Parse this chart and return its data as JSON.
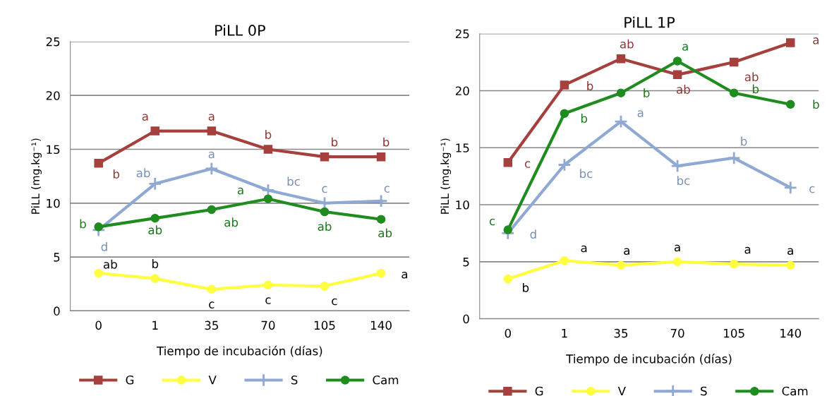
{
  "chart_data": [
    {
      "type": "line",
      "title": "PiLL 0P",
      "xlabel": "Tiempo de incubación (días)",
      "ylabel": "PiLL (mg.kg⁻¹)",
      "categories": [
        "0",
        "1",
        "35",
        "70",
        "105",
        "140"
      ],
      "ylim": [
        0,
        25
      ],
      "yticks": [
        0,
        5,
        10,
        15,
        20,
        25
      ],
      "grid": "y",
      "legend": "bottom",
      "series": [
        {
          "name": "G",
          "color": "#a5403d",
          "marker": "square",
          "values": [
            13.7,
            16.7,
            16.7,
            15.0,
            14.3,
            14.3
          ],
          "value_labels": [
            "b",
            "a",
            "a",
            "b",
            "b",
            "b"
          ]
        },
        {
          "name": "V",
          "color": "#ffff40",
          "marker": "circle",
          "values": [
            3.5,
            3.0,
            2.0,
            2.4,
            2.3,
            3.5
          ],
          "value_labels": [
            "ab",
            "b",
            "c",
            "c",
            "c",
            "a"
          ]
        },
        {
          "name": "S",
          "color": "#8fa8d4",
          "marker": "cross",
          "values": [
            7.5,
            11.8,
            13.2,
            11.2,
            10.0,
            10.2
          ],
          "value_labels": [
            "d",
            "ab",
            "a",
            "bc",
            "c",
            "c"
          ]
        },
        {
          "name": "Cam",
          "color": "#1e8c1e",
          "marker": "circle",
          "values": [
            7.8,
            8.6,
            9.4,
            10.4,
            9.2,
            8.5
          ],
          "value_labels": [
            "b",
            "ab",
            "ab",
            "a",
            "ab",
            "ab"
          ]
        }
      ]
    },
    {
      "type": "line",
      "title": "PiLL 1P",
      "xlabel": "Tiempo de incubación (días)",
      "ylabel": "PiLL (mg.kg⁻¹)",
      "categories": [
        "0",
        "1",
        "35",
        "70",
        "105",
        "140"
      ],
      "ylim": [
        0,
        25
      ],
      "yticks": [
        0,
        5,
        10,
        15,
        20,
        25
      ],
      "grid": "y",
      "legend": "bottom",
      "series": [
        {
          "name": "G",
          "color": "#a5403d",
          "marker": "square",
          "values": [
            13.7,
            20.5,
            22.8,
            21.4,
            22.5,
            24.2
          ],
          "value_labels": [
            "c",
            "b",
            "ab",
            "ab",
            "ab",
            "a"
          ]
        },
        {
          "name": "V",
          "color": "#ffff40",
          "marker": "circle",
          "values": [
            3.5,
            5.1,
            4.7,
            5.0,
            4.8,
            4.7
          ],
          "value_labels": [
            "b",
            "a",
            "a",
            "a",
            "a",
            "a"
          ]
        },
        {
          "name": "S",
          "color": "#8fa8d4",
          "marker": "cross",
          "values": [
            7.5,
            13.5,
            17.3,
            13.4,
            14.1,
            11.5
          ],
          "value_labels": [
            "d",
            "bc",
            "a",
            "bc",
            "b",
            "c"
          ]
        },
        {
          "name": "Cam",
          "color": "#1e8c1e",
          "marker": "circle",
          "values": [
            7.8,
            18.0,
            19.8,
            22.6,
            19.8,
            18.8
          ],
          "value_labels": [
            "c",
            "b",
            "b",
            "a",
            "b",
            "b"
          ]
        }
      ]
    }
  ]
}
